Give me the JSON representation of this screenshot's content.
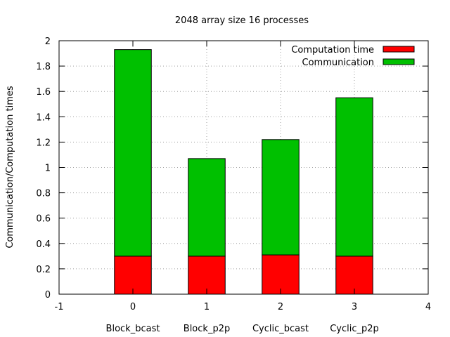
{
  "chart_data": {
    "type": "bar",
    "stacked": true,
    "title": "2048 array size 16 processes",
    "ylabel": "Communication/Computation times",
    "xlim": [
      -1,
      4
    ],
    "ylim": [
      0,
      2
    ],
    "x_ticks": [
      "-1",
      "0",
      "1",
      "2",
      "3",
      "4"
    ],
    "y_ticks": [
      "0",
      "0.2",
      "0.4",
      "0.6",
      "0.8",
      "1",
      "1.2",
      "1.4",
      "1.6",
      "1.8",
      "2"
    ],
    "grid": true,
    "legend_position": "top-right",
    "x": [
      0,
      1,
      2,
      3
    ],
    "categories": [
      "Block_bcast",
      "Block_p2p",
      "Cyclic_bcast",
      "Cyclic_p2p"
    ],
    "series": [
      {
        "name": "Computation time",
        "color": "#ff0000",
        "values": [
          0.3,
          0.3,
          0.31,
          0.3
        ]
      },
      {
        "name": "Communication",
        "color": "#00c000",
        "values": [
          1.63,
          0.77,
          0.91,
          1.25
        ]
      }
    ]
  }
}
